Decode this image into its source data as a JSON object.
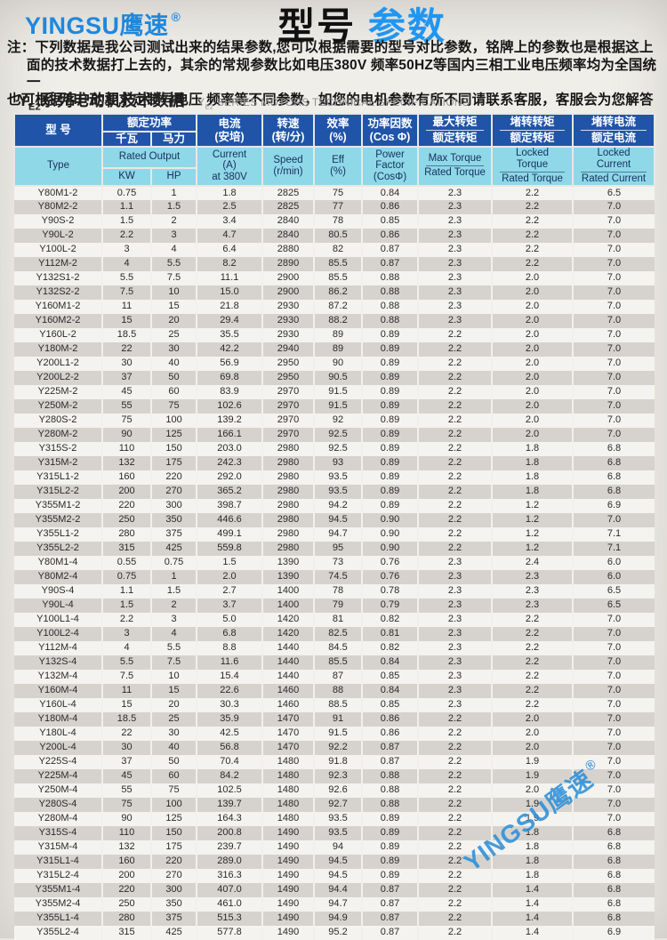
{
  "brand": {
    "logo_text": "YINGSU鹰速",
    "mark": "®",
    "logo_color": "#1e88dd"
  },
  "title": {
    "black": "型号",
    "blue": "参数",
    "blue_color": "#2196f0"
  },
  "note": {
    "line1": "注：下列数据是我公司测试出来的结果参数,您可以根据需要的型号对比参数，铭牌上的参数也是根据这上",
    "line2": "面的技术数据打上去的，其余的常规参数比如电压380V 频率50HZ等国内三相工业电压频率均为全国统一",
    "line3": "也可根据客户的要求定制异电压 频率等不同参数，如您的电机参数有所不同请联系客服，客服会为您解答"
  },
  "section": {
    "zh_prefix": "Y",
    "zh_sub": "E2",
    "zh_rest": "系列电动机技术数据",
    "en_prefix": "Y",
    "en_sub": "E2",
    "en_rest": " SERIES MOTORS TECHNICAL SPECIFICATIONS"
  },
  "table": {
    "colors": {
      "header_dark": "#2054a8",
      "header_light": "#8fd8e8",
      "stripe_gray": "#d6d3cf",
      "row_white": "#f4f3ef"
    },
    "header": {
      "type_zh": "型  号",
      "type_en": "Type",
      "rated_output_zh": "额定功率",
      "rated_output_en": "Rated Output",
      "kw_zh": "千瓦",
      "hp_zh": "马力",
      "kw_en": "KW",
      "hp_en": "HP",
      "current_zh1": "电流",
      "current_zh2": "(安培)",
      "current_en1": "Current",
      "current_en2": "(A)",
      "current_en3": "at 380V",
      "speed_zh1": "转速",
      "speed_zh2": "(转/分)",
      "speed_en1": "Speed",
      "speed_en2": "(r/min)",
      "eff_zh1": "效率",
      "eff_zh2": "(%)",
      "eff_en1": "Eff",
      "eff_en2": "(%)",
      "pf_zh1": "功率因数",
      "pf_zh2": "(Cos Φ)",
      "pf_en1": "Power",
      "pf_en2": "Factor",
      "pf_en3": "(CosΦ)",
      "max_torque_zh_num": "最大转矩",
      "max_torque_zh_den": "额定转矩",
      "max_torque_en_num": "Max Torque",
      "max_torque_en_den": "Rated Torque",
      "locked_torque_zh_num": "堵转转矩",
      "locked_torque_zh_den": "额定转矩",
      "locked_torque_en_num": "Locked Torque",
      "locked_torque_en_den": "Rated Torque",
      "locked_current_zh_num": "堵转电流",
      "locked_current_zh_den": "额定电流",
      "locked_current_en_num": "Locked Current",
      "locked_current_en_den": "Rated Current"
    },
    "rows": [
      [
        "Y80M1-2",
        "0.75",
        "1",
        "1.8",
        "2825",
        "75",
        "0.84",
        "2.3",
        "2.2",
        "6.5"
      ],
      [
        "Y80M2-2",
        "1.1",
        "1.5",
        "2.5",
        "2825",
        "77",
        "0.86",
        "2.3",
        "2.2",
        "7.0"
      ],
      [
        "Y90S-2",
        "1.5",
        "2",
        "3.4",
        "2840",
        "78",
        "0.85",
        "2.3",
        "2.2",
        "7.0"
      ],
      [
        "Y90L-2",
        "2.2",
        "3",
        "4.7",
        "2840",
        "80.5",
        "0.86",
        "2.3",
        "2.2",
        "7.0"
      ],
      [
        "Y100L-2",
        "3",
        "4",
        "6.4",
        "2880",
        "82",
        "0.87",
        "2.3",
        "2.2",
        "7.0"
      ],
      [
        "Y112M-2",
        "4",
        "5.5",
        "8.2",
        "2890",
        "85.5",
        "0.87",
        "2.3",
        "2.2",
        "7.0"
      ],
      [
        "Y132S1-2",
        "5.5",
        "7.5",
        "11.1",
        "2900",
        "85.5",
        "0.88",
        "2.3",
        "2.0",
        "7.0"
      ],
      [
        "Y132S2-2",
        "7.5",
        "10",
        "15.0",
        "2900",
        "86.2",
        "0.88",
        "2.3",
        "2.0",
        "7.0"
      ],
      [
        "Y160M1-2",
        "11",
        "15",
        "21.8",
        "2930",
        "87.2",
        "0.88",
        "2.3",
        "2.0",
        "7.0"
      ],
      [
        "Y160M2-2",
        "15",
        "20",
        "29.4",
        "2930",
        "88.2",
        "0.88",
        "2.3",
        "2.0",
        "7.0"
      ],
      [
        "Y160L-2",
        "18.5",
        "25",
        "35.5",
        "2930",
        "89",
        "0.89",
        "2.2",
        "2.0",
        "7.0"
      ],
      [
        "Y180M-2",
        "22",
        "30",
        "42.2",
        "2940",
        "89",
        "0.89",
        "2.2",
        "2.0",
        "7.0"
      ],
      [
        "Y200L1-2",
        "30",
        "40",
        "56.9",
        "2950",
        "90",
        "0.89",
        "2.2",
        "2.0",
        "7.0"
      ],
      [
        "Y200L2-2",
        "37",
        "50",
        "69.8",
        "2950",
        "90.5",
        "0.89",
        "2.2",
        "2.0",
        "7.0"
      ],
      [
        "Y225M-2",
        "45",
        "60",
        "83.9",
        "2970",
        "91.5",
        "0.89",
        "2.2",
        "2.0",
        "7.0"
      ],
      [
        "Y250M-2",
        "55",
        "75",
        "102.6",
        "2970",
        "91.5",
        "0.89",
        "2.2",
        "2.0",
        "7.0"
      ],
      [
        "Y280S-2",
        "75",
        "100",
        "139.2",
        "2970",
        "92",
        "0.89",
        "2.2",
        "2.0",
        "7.0"
      ],
      [
        "Y280M-2",
        "90",
        "125",
        "166.1",
        "2970",
        "92.5",
        "0.89",
        "2.2",
        "2.0",
        "7.0"
      ],
      [
        "Y315S-2",
        "110",
        "150",
        "203.0",
        "2980",
        "92.5",
        "0.89",
        "2.2",
        "1.8",
        "6.8"
      ],
      [
        "Y315M-2",
        "132",
        "175",
        "242.3",
        "2980",
        "93",
        "0.89",
        "2.2",
        "1.8",
        "6.8"
      ],
      [
        "Y315L1-2",
        "160",
        "220",
        "292.0",
        "2980",
        "93.5",
        "0.89",
        "2.2",
        "1.8",
        "6.8"
      ],
      [
        "Y315L2-2",
        "200",
        "270",
        "365.2",
        "2980",
        "93.5",
        "0.89",
        "2.2",
        "1.8",
        "6.8"
      ],
      [
        "Y355M1-2",
        "220",
        "300",
        "398.7",
        "2980",
        "94.2",
        "0.89",
        "2.2",
        "1.2",
        "6.9"
      ],
      [
        "Y355M2-2",
        "250",
        "350",
        "446.6",
        "2980",
        "94.5",
        "0.90",
        "2.2",
        "1.2",
        "7.0"
      ],
      [
        "Y355L1-2",
        "280",
        "375",
        "499.1",
        "2980",
        "94.7",
        "0.90",
        "2.2",
        "1.2",
        "7.1"
      ],
      [
        "Y355L2-2",
        "315",
        "425",
        "559.8",
        "2980",
        "95",
        "0.90",
        "2.2",
        "1.2",
        "7.1"
      ],
      [
        "Y80M1-4",
        "0.55",
        "0.75",
        "1.5",
        "1390",
        "73",
        "0.76",
        "2.3",
        "2.4",
        "6.0"
      ],
      [
        "Y80M2-4",
        "0.75",
        "1",
        "2.0",
        "1390",
        "74.5",
        "0.76",
        "2.3",
        "2.3",
        "6.0"
      ],
      [
        "Y90S-4",
        "1.1",
        "1.5",
        "2.7",
        "1400",
        "78",
        "0.78",
        "2.3",
        "2.3",
        "6.5"
      ],
      [
        "Y90L-4",
        "1.5",
        "2",
        "3.7",
        "1400",
        "79",
        "0.79",
        "2.3",
        "2.3",
        "6.5"
      ],
      [
        "Y100L1-4",
        "2.2",
        "3",
        "5.0",
        "1420",
        "81",
        "0.82",
        "2.3",
        "2.2",
        "7.0"
      ],
      [
        "Y100L2-4",
        "3",
        "4",
        "6.8",
        "1420",
        "82.5",
        "0.81",
        "2.3",
        "2.2",
        "7.0"
      ],
      [
        "Y112M-4",
        "4",
        "5.5",
        "8.8",
        "1440",
        "84.5",
        "0.82",
        "2.3",
        "2.2",
        "7.0"
      ],
      [
        "Y132S-4",
        "5.5",
        "7.5",
        "11.6",
        "1440",
        "85.5",
        "0.84",
        "2.3",
        "2.2",
        "7.0"
      ],
      [
        "Y132M-4",
        "7.5",
        "10",
        "15.4",
        "1440",
        "87",
        "0.85",
        "2.3",
        "2.2",
        "7.0"
      ],
      [
        "Y160M-4",
        "11",
        "15",
        "22.6",
        "1460",
        "88",
        "0.84",
        "2.3",
        "2.2",
        "7.0"
      ],
      [
        "Y160L-4",
        "15",
        "20",
        "30.3",
        "1460",
        "88.5",
        "0.85",
        "2.3",
        "2.2",
        "7.0"
      ],
      [
        "Y180M-4",
        "18.5",
        "25",
        "35.9",
        "1470",
        "91",
        "0.86",
        "2.2",
        "2.0",
        "7.0"
      ],
      [
        "Y180L-4",
        "22",
        "30",
        "42.5",
        "1470",
        "91.5",
        "0.86",
        "2.2",
        "2.0",
        "7.0"
      ],
      [
        "Y200L-4",
        "30",
        "40",
        "56.8",
        "1470",
        "92.2",
        "0.87",
        "2.2",
        "2.0",
        "7.0"
      ],
      [
        "Y225S-4",
        "37",
        "50",
        "70.4",
        "1480",
        "91.8",
        "0.87",
        "2.2",
        "1.9",
        "7.0"
      ],
      [
        "Y225M-4",
        "45",
        "60",
        "84.2",
        "1480",
        "92.3",
        "0.88",
        "2.2",
        "1.9",
        "7.0"
      ],
      [
        "Y250M-4",
        "55",
        "75",
        "102.5",
        "1480",
        "92.6",
        "0.88",
        "2.2",
        "2.0",
        "7.0"
      ],
      [
        "Y280S-4",
        "75",
        "100",
        "139.7",
        "1480",
        "92.7",
        "0.88",
        "2.2",
        "1.9",
        "7.0"
      ],
      [
        "Y280M-4",
        "90",
        "125",
        "164.3",
        "1480",
        "93.5",
        "0.89",
        "2.2",
        "1.9",
        "7.0"
      ],
      [
        "Y315S-4",
        "110",
        "150",
        "200.8",
        "1490",
        "93.5",
        "0.89",
        "2.2",
        "1.8",
        "6.8"
      ],
      [
        "Y315M-4",
        "132",
        "175",
        "239.7",
        "1490",
        "94",
        "0.89",
        "2.2",
        "1.8",
        "6.8"
      ],
      [
        "Y315L1-4",
        "160",
        "220",
        "289.0",
        "1490",
        "94.5",
        "0.89",
        "2.2",
        "1.8",
        "6.8"
      ],
      [
        "Y315L2-4",
        "200",
        "270",
        "316.3",
        "1490",
        "94.5",
        "0.89",
        "2.2",
        "1.8",
        "6.8"
      ],
      [
        "Y355M1-4",
        "220",
        "300",
        "407.0",
        "1490",
        "94.4",
        "0.87",
        "2.2",
        "1.4",
        "6.8"
      ],
      [
        "Y355M2-4",
        "250",
        "350",
        "461.0",
        "1490",
        "94.7",
        "0.87",
        "2.2",
        "1.4",
        "6.8"
      ],
      [
        "Y355L1-4",
        "280",
        "375",
        "515.3",
        "1490",
        "94.9",
        "0.87",
        "2.2",
        "1.4",
        "6.8"
      ],
      [
        "Y355L2-4",
        "315",
        "425",
        "577.8",
        "1490",
        "95.2",
        "0.87",
        "2.2",
        "1.4",
        "6.9"
      ]
    ]
  },
  "watermark": {
    "text": "YINGSU鹰速",
    "mark": "®",
    "color": "#2e8fd8"
  }
}
